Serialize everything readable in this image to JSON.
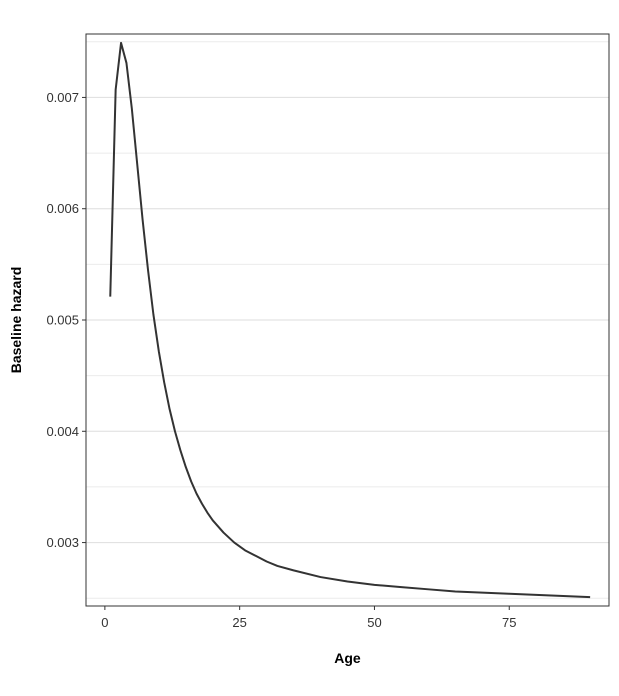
{
  "chart_data": {
    "type": "line",
    "title": "",
    "xlabel": "Age",
    "ylabel": "Baseline hazard",
    "xlim": [
      -3.5,
      93.5
    ],
    "ylim": [
      0.00243,
      0.00757
    ],
    "x_ticks": [
      0,
      25,
      50,
      75
    ],
    "x_tick_labels": [
      "0",
      "25",
      "50",
      "75"
    ],
    "y_ticks": [
      0.003,
      0.004,
      0.005,
      0.006,
      0.007
    ],
    "y_tick_labels": [
      "0.003",
      "0.004",
      "0.005",
      "0.006",
      "0.007"
    ],
    "y_minor_gridlines": [
      0.0025,
      0.0035,
      0.0045,
      0.0055,
      0.0065,
      0.0075
    ],
    "grid": "horizontal",
    "line_color": "#333333",
    "series": [
      {
        "x": [
          1,
          2,
          3,
          4,
          5,
          6,
          7,
          8,
          9,
          10,
          11,
          12,
          13,
          14,
          15,
          16,
          17,
          18,
          19,
          20,
          22,
          24,
          26,
          28,
          30,
          32,
          35,
          40,
          45,
          50,
          55,
          60,
          65,
          70,
          75,
          80,
          85,
          90
        ],
        "y": [
          0.00521,
          0.00707,
          0.00749,
          0.00731,
          0.0069,
          0.0064,
          0.0059,
          0.00545,
          0.00505,
          0.00472,
          0.00444,
          0.0042,
          0.004,
          0.00383,
          0.00368,
          0.00355,
          0.00344,
          0.00335,
          0.00327,
          0.0032,
          0.00309,
          0.003,
          0.00293,
          0.00288,
          0.00283,
          0.00279,
          0.00275,
          0.00269,
          0.00265,
          0.00262,
          0.0026,
          0.00258,
          0.00256,
          0.00255,
          0.00254,
          0.00253,
          0.00252,
          0.00251
        ]
      }
    ]
  }
}
